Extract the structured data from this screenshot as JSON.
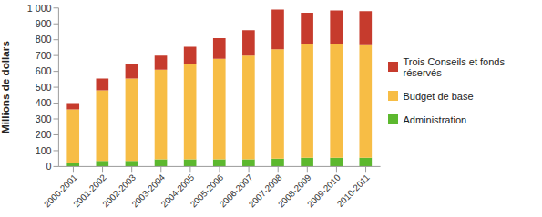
{
  "chart_data": {
    "type": "bar",
    "stacked": true,
    "grid": false,
    "legend": "right",
    "y_label": "Millions de dollars",
    "categories": [
      "2000-2001",
      "2001-2002",
      "2002-2003",
      "2003-2004",
      "2004-2005",
      "2005-2006",
      "2006-2007",
      "2007-2008",
      "2008-2009",
      "2009-2010",
      "2010-2011"
    ],
    "series": [
      {
        "name": "Administration",
        "color": "#5cb82e",
        "values": [
          20,
          35,
          35,
          45,
          45,
          45,
          45,
          50,
          55,
          55,
          55
        ]
      },
      {
        "name": "Budget de base",
        "color": "#f7bd45",
        "values": [
          340,
          445,
          520,
          565,
          605,
          635,
          655,
          690,
          720,
          720,
          710
        ]
      },
      {
        "name": "Trois Conseils et fonds réservés",
        "color": "#c63b2d",
        "values": [
          40,
          75,
          95,
          90,
          105,
          130,
          160,
          250,
          195,
          210,
          215
        ]
      }
    ],
    "ylim": [
      0,
      1000
    ],
    "yticks": [
      0,
      100,
      200,
      300,
      400,
      500,
      600,
      700,
      800,
      900,
      {
        "value": 1000,
        "label": "1 000"
      }
    ]
  }
}
